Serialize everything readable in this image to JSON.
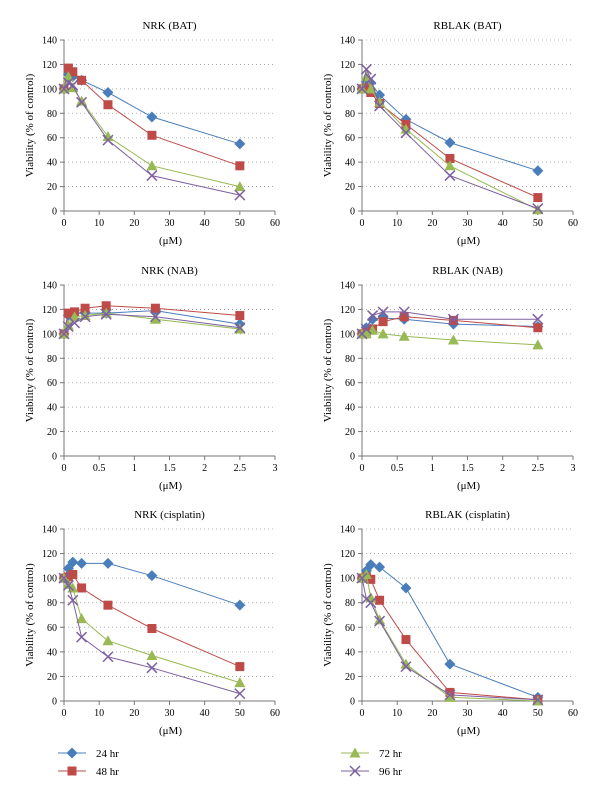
{
  "legend": {
    "entries": [
      {
        "label": "24 hr",
        "color": "#4a7ebb",
        "marker": "diamond"
      },
      {
        "label": "48 hr",
        "color": "#be4b48",
        "marker": "square"
      },
      {
        "label": "72 hr",
        "color": "#98b954",
        "marker": "triangle"
      },
      {
        "label": "96 hr",
        "color": "#7d60a0",
        "marker": "x"
      }
    ]
  },
  "chart_data": [
    {
      "type": "line",
      "title": "NRK (BAT)",
      "xlabel": "(μM)",
      "ylabel": "Viability (% of control)",
      "xlim": [
        0,
        60
      ],
      "xticks": [
        0,
        10,
        20,
        30,
        40,
        50,
        60
      ],
      "ylim": [
        0,
        140
      ],
      "yticks": [
        0,
        20,
        40,
        60,
        80,
        100,
        120,
        140
      ],
      "grid": "horizontal-dotted",
      "series": [
        {
          "name": "24 hr",
          "x": [
            0,
            1.25,
            2.5,
            5,
            12.5,
            25,
            50
          ],
          "y": [
            100,
            112,
            110,
            107,
            97,
            77,
            55
          ]
        },
        {
          "name": "48 hr",
          "x": [
            0,
            1.25,
            2.5,
            5,
            12.5,
            25,
            50
          ],
          "y": [
            100,
            117,
            114,
            107,
            87,
            62,
            37
          ]
        },
        {
          "name": "72 hr",
          "x": [
            0,
            1.25,
            2.5,
            5,
            12.5,
            25,
            50
          ],
          "y": [
            100,
            110,
            101,
            90,
            61,
            37,
            20
          ]
        },
        {
          "name": "96 hr",
          "x": [
            0,
            1.25,
            2.5,
            5,
            12.5,
            25,
            50
          ],
          "y": [
            100,
            105,
            103,
            89,
            58,
            29,
            13
          ]
        }
      ]
    },
    {
      "type": "line",
      "title": "RBLAK (BAT)",
      "xlabel": "(μM)",
      "ylabel": "Viability (% of control)",
      "xlim": [
        0,
        60
      ],
      "xticks": [
        0,
        10,
        20,
        30,
        40,
        50,
        60
      ],
      "ylim": [
        0,
        140
      ],
      "yticks": [
        0,
        20,
        40,
        60,
        80,
        100,
        120,
        140
      ],
      "grid": "horizontal-dotted",
      "series": [
        {
          "name": "24 hr",
          "x": [
            0,
            1.25,
            2.5,
            5,
            12.5,
            25,
            50
          ],
          "y": [
            100,
            106,
            105,
            95,
            75,
            56,
            33
          ]
        },
        {
          "name": "48 hr",
          "x": [
            0,
            1.25,
            2.5,
            5,
            12.5,
            25,
            50
          ],
          "y": [
            100,
            101,
            97,
            88,
            71,
            43,
            11
          ]
        },
        {
          "name": "72 hr",
          "x": [
            0,
            1.25,
            2.5,
            5,
            12.5,
            25,
            50
          ],
          "y": [
            100,
            110,
            100,
            89,
            67,
            37,
            1
          ]
        },
        {
          "name": "96 hr",
          "x": [
            0,
            1.25,
            2.5,
            5,
            12.5,
            25,
            50
          ],
          "y": [
            100,
            116,
            108,
            86,
            64,
            29,
            2
          ]
        }
      ]
    },
    {
      "type": "line",
      "title": "NRK (NAB)",
      "xlabel": "(μM)",
      "ylabel": "Viability (% of control)",
      "xlim": [
        0,
        3
      ],
      "xticks": [
        0,
        0.5,
        1,
        1.5,
        2,
        2.5,
        3
      ],
      "ylim": [
        0,
        140
      ],
      "yticks": [
        0,
        20,
        40,
        60,
        80,
        100,
        120,
        140
      ],
      "grid": "horizontal-dotted",
      "series": [
        {
          "name": "24 hr",
          "x": [
            0,
            0.06,
            0.15,
            0.3,
            0.6,
            1.3,
            2.5
          ],
          "y": [
            100,
            115,
            117,
            117,
            117,
            119,
            108
          ]
        },
        {
          "name": "48 hr",
          "x": [
            0,
            0.06,
            0.15,
            0.3,
            0.6,
            1.3,
            2.5
          ],
          "y": [
            100,
            117,
            118,
            121,
            123,
            121,
            115
          ]
        },
        {
          "name": "72 hr",
          "x": [
            0,
            0.06,
            0.15,
            0.3,
            0.6,
            1.3,
            2.5
          ],
          "y": [
            100,
            107,
            114,
            115,
            117,
            112,
            104
          ]
        },
        {
          "name": "96 hr",
          "x": [
            0,
            0.06,
            0.15,
            0.3,
            0.6,
            1.3,
            2.5
          ],
          "y": [
            100,
            106,
            109,
            114,
            116,
            114,
            105
          ]
        }
      ]
    },
    {
      "type": "line",
      "title": "RBLAK (NAB)",
      "xlabel": "(μM)",
      "ylabel": "Viability (% of control)",
      "xlim": [
        0,
        3
      ],
      "xticks": [
        0,
        0.5,
        1,
        1.5,
        2,
        2.5,
        3
      ],
      "ylim": [
        0,
        140
      ],
      "yticks": [
        0,
        20,
        40,
        60,
        80,
        100,
        120,
        140
      ],
      "grid": "horizontal-dotted",
      "series": [
        {
          "name": "24 hr",
          "x": [
            0,
            0.06,
            0.15,
            0.3,
            0.6,
            1.3,
            2.5
          ],
          "y": [
            100,
            105,
            112,
            113,
            112,
            108,
            106
          ]
        },
        {
          "name": "48 hr",
          "x": [
            0,
            0.06,
            0.15,
            0.3,
            0.6,
            1.3,
            2.5
          ],
          "y": [
            100,
            101,
            104,
            110,
            114,
            111,
            105
          ]
        },
        {
          "name": "72 hr",
          "x": [
            0,
            0.06,
            0.15,
            0.3,
            0.6,
            1.3,
            2.5
          ],
          "y": [
            100,
            100,
            103,
            100,
            98,
            95,
            91
          ]
        },
        {
          "name": "96 hr",
          "x": [
            0,
            0.06,
            0.15,
            0.3,
            0.6,
            1.3,
            2.5
          ],
          "y": [
            100,
            104,
            115,
            118,
            118,
            112,
            112
          ]
        }
      ]
    },
    {
      "type": "line",
      "title": "NRK (cisplatin)",
      "xlabel": "(μM)",
      "ylabel": "Viability (% of control)",
      "xlim": [
        0,
        60
      ],
      "xticks": [
        0,
        10,
        20,
        30,
        40,
        50,
        60
      ],
      "ylim": [
        0,
        140
      ],
      "yticks": [
        0,
        20,
        40,
        60,
        80,
        100,
        120,
        140
      ],
      "grid": "horizontal-dotted",
      "series": [
        {
          "name": "24 hr",
          "x": [
            0,
            1.25,
            2.5,
            5,
            12.5,
            25,
            50
          ],
          "y": [
            100,
            108,
            113,
            112,
            112,
            102,
            78
          ]
        },
        {
          "name": "48 hr",
          "x": [
            0,
            1.25,
            2.5,
            5,
            12.5,
            25,
            50
          ],
          "y": [
            100,
            101,
            103,
            92,
            78,
            59,
            28
          ]
        },
        {
          "name": "72 hr",
          "x": [
            0,
            1.25,
            2.5,
            5,
            12.5,
            25,
            50
          ],
          "y": [
            100,
            95,
            92,
            67,
            49,
            37,
            15
          ]
        },
        {
          "name": "96 hr",
          "x": [
            0,
            1.25,
            2.5,
            5,
            12.5,
            25,
            50
          ],
          "y": [
            100,
            94,
            82,
            52,
            36,
            27,
            6
          ]
        }
      ]
    },
    {
      "type": "line",
      "title": "RBLAK (cisplatin)",
      "xlabel": "(μM)",
      "ylabel": "Viability (% of control)",
      "xlim": [
        0,
        60
      ],
      "xticks": [
        0,
        10,
        20,
        30,
        40,
        50,
        60
      ],
      "ylim": [
        0,
        140
      ],
      "yticks": [
        0,
        20,
        40,
        60,
        80,
        100,
        120,
        140
      ],
      "grid": "horizontal-dotted",
      "series": [
        {
          "name": "24 hr",
          "x": [
            0,
            1.25,
            2.5,
            5,
            12.5,
            25,
            50
          ],
          "y": [
            100,
            106,
            111,
            109,
            92,
            30,
            3
          ]
        },
        {
          "name": "48 hr",
          "x": [
            0,
            1.25,
            2.5,
            5,
            12.5,
            25,
            50
          ],
          "y": [
            100,
            101,
            99,
            82,
            50,
            7,
            1
          ]
        },
        {
          "name": "72 hr",
          "x": [
            0,
            1.25,
            2.5,
            5,
            12.5,
            25,
            50
          ],
          "y": [
            100,
            103,
            84,
            66,
            30,
            3,
            0
          ]
        },
        {
          "name": "96 hr",
          "x": [
            0,
            1.25,
            2.5,
            5,
            12.5,
            25,
            50
          ],
          "y": [
            100,
            83,
            80,
            65,
            28,
            5,
            1
          ]
        }
      ]
    }
  ]
}
